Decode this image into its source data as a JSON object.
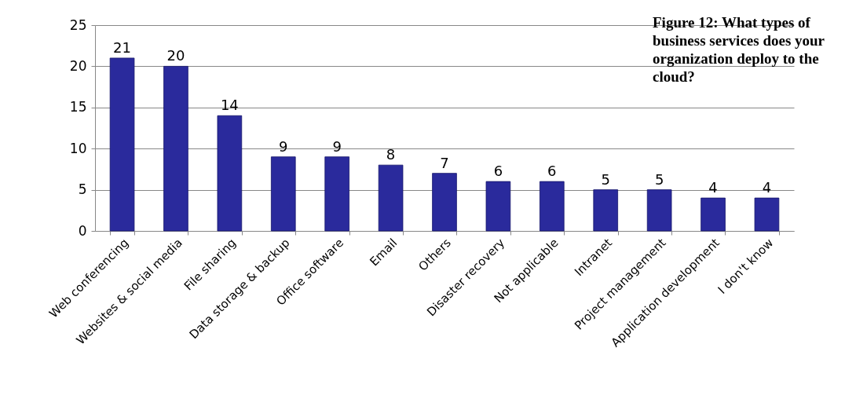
{
  "chart_data": {
    "type": "bar",
    "title": "Figure 12: What types of business services does your organization deploy to the cloud?",
    "categories": [
      "Web conferencing",
      "Websites & social media",
      "File sharing",
      "Data storage & backup",
      "Office software",
      "Email",
      "Others",
      "Disaster recovery",
      "Not applicable",
      "Intranet",
      "Project management",
      "Application development",
      "I don't know"
    ],
    "values": [
      21,
      20,
      14,
      9,
      9,
      8,
      7,
      6,
      6,
      5,
      5,
      4,
      4
    ],
    "color": "#2a2a9c",
    "ylim": [
      0,
      25
    ],
    "yticks": [
      0,
      5,
      10,
      15,
      20,
      25
    ],
    "grid": "y",
    "data_labels": true
  }
}
